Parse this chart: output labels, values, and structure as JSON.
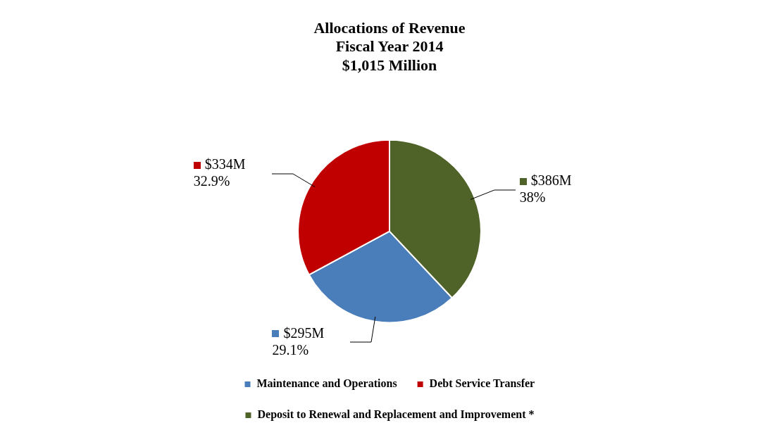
{
  "chart_data": {
    "type": "pie",
    "title": "Allocations of Revenue\nFiscal Year 2014\n$1,015 Million",
    "categories": [
      "Maintenance and Operations",
      "Debt Service Transfer",
      "Deposit to Renewal and Replacement and Improvement *"
    ],
    "values": [
      29.1,
      32.9,
      38
    ],
    "colors": [
      "#4a7ebb",
      "#c00000",
      "#4f6228"
    ],
    "value_labels": [
      "$295M\n29.1%",
      "$334M\n32.9%",
      "$386M\n38%"
    ],
    "legend": "bottom"
  }
}
